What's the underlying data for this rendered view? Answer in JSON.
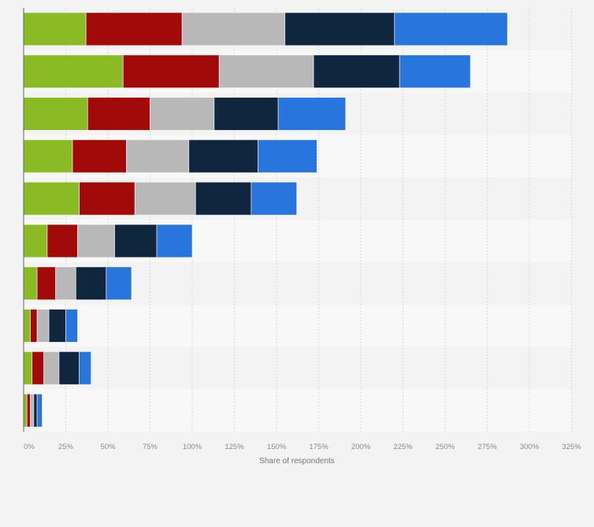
{
  "chart_data": {
    "type": "bar",
    "orientation": "horizontal",
    "stacked": true,
    "title": "",
    "xlabel": "Share of respondents",
    "ylabel": "",
    "xlim": [
      0,
      325
    ],
    "x_ticks": [
      0,
      25,
      50,
      75,
      100,
      125,
      150,
      175,
      200,
      225,
      250,
      275,
      300,
      325
    ],
    "x_tick_labels": [
      "0%",
      "25%",
      "50%",
      "75%",
      "100%",
      "125%",
      "150%",
      "175%",
      "200%",
      "225%",
      "250%",
      "275%",
      "300%",
      "325%"
    ],
    "grid": true,
    "legend": "none",
    "series": [
      {
        "color": "#8aba24",
        "values": [
          37,
          59,
          38,
          29,
          33,
          14,
          8,
          4,
          5,
          2
        ]
      },
      {
        "color": "#a20a0a",
        "values": [
          57,
          57,
          37,
          32,
          33,
          18,
          11,
          4,
          7,
          2
        ]
      },
      {
        "color": "#b8b8b8",
        "values": [
          61,
          56,
          38,
          37,
          36,
          22,
          12,
          7,
          9,
          2
        ]
      },
      {
        "color": "#10263f",
        "values": [
          65,
          51,
          38,
          41,
          33,
          25,
          18,
          10,
          12,
          2
        ]
      },
      {
        "color": "#2876dd",
        "values": [
          67,
          42,
          40,
          35,
          27,
          21,
          15,
          7,
          7,
          3
        ]
      }
    ]
  }
}
